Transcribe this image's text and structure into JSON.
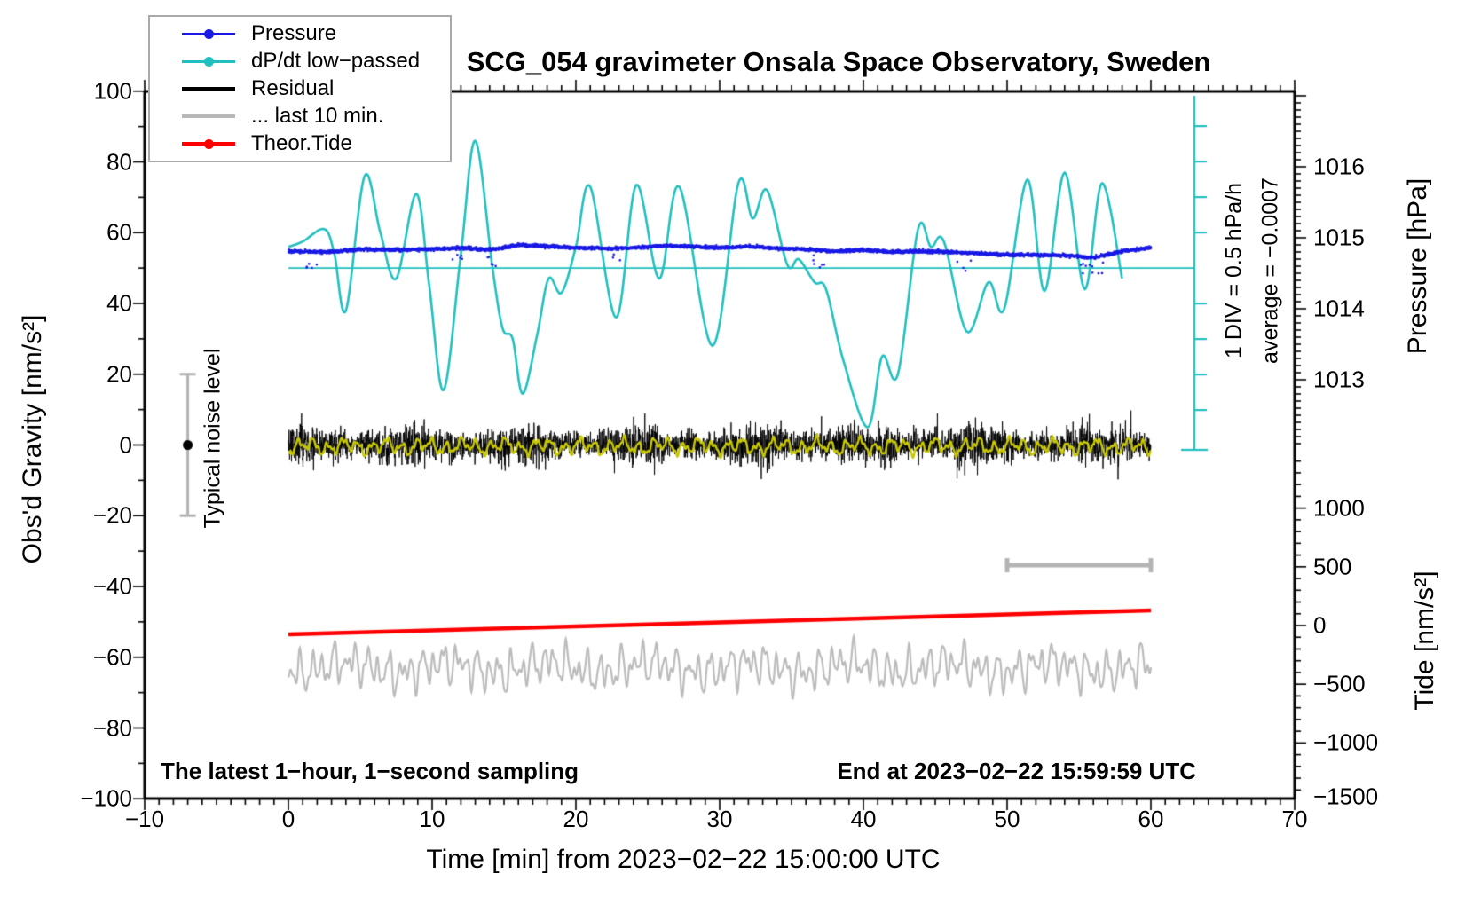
{
  "title": "SCG_054 gravimeter Onsala Space Observatory, Sweden",
  "legend": {
    "items": [
      {
        "label": "Pressure",
        "color": "#1a1ae6",
        "marker": "dot"
      },
      {
        "label": "dP/dt low−passed",
        "color": "#22bfbf",
        "marker": "dot"
      },
      {
        "label": "Residual",
        "color": "#000000",
        "marker": "none"
      },
      {
        "label": "... last 10 min.",
        "color": "#b8b8b8",
        "marker": "none"
      },
      {
        "label": "Theor.Tide",
        "color": "#ff0000",
        "marker": "dot"
      }
    ]
  },
  "annotations": {
    "div_scale": "1 DIV = 0.5 hPa/h",
    "average": "average = −0.0007",
    "noise_label": "Typical noise level",
    "sampling": "The latest 1−hour, 1−second sampling",
    "end_time": "End at 2023−02−22 15:59:59 UTC"
  },
  "axes": {
    "x": {
      "label": "Time [min] from 2023−02−22 15:00:00 UTC",
      "range": [
        -10,
        70
      ],
      "major_tick": 10,
      "minor_tick": 1,
      "ticks": [
        {
          "v": -10,
          "label": "−10"
        },
        {
          "v": 0,
          "label": "0"
        },
        {
          "v": 10,
          "label": "10"
        },
        {
          "v": 20,
          "label": "20"
        },
        {
          "v": 30,
          "label": "30"
        },
        {
          "v": 40,
          "label": "40"
        },
        {
          "v": 50,
          "label": "50"
        },
        {
          "v": 60,
          "label": "60"
        },
        {
          "v": 70,
          "label": "70"
        }
      ]
    },
    "gravity": {
      "label": "Obs'd Gravity [nm/s²]",
      "range": [
        -100,
        100
      ],
      "major_tick": 20,
      "minor_tick": 10,
      "ticks": [
        {
          "v": 100,
          "label": "100"
        },
        {
          "v": 80,
          "label": "80"
        },
        {
          "v": 60,
          "label": "60"
        },
        {
          "v": 40,
          "label": "40"
        },
        {
          "v": 20,
          "label": "20"
        },
        {
          "v": 0,
          "label": "0"
        },
        {
          "v": -20,
          "label": "−20"
        },
        {
          "v": -40,
          "label": "−40"
        },
        {
          "v": -60,
          "label": "−60"
        },
        {
          "v": -80,
          "label": "−80"
        },
        {
          "v": -100,
          "label": "−100"
        }
      ]
    },
    "pressure": {
      "label": "Pressure [hPa]",
      "major_tick": 1,
      "minor_tick": 0.1,
      "ticks": [
        {
          "v": 1016,
          "label": "1016"
        },
        {
          "v": 1015,
          "label": "1015"
        },
        {
          "v": 1014,
          "label": "1014"
        },
        {
          "v": 1013,
          "label": "1013"
        }
      ]
    },
    "tide": {
      "label": "Tide [nm/s²]",
      "major_tick": 500,
      "minor_tick": 100,
      "ticks": [
        {
          "v": 1000,
          "label": "1000"
        },
        {
          "v": 500,
          "label": "500"
        },
        {
          "v": 0,
          "label": "0"
        },
        {
          "v": -500,
          "label": "−500"
        },
        {
          "v": -1000,
          "label": "−1000"
        },
        {
          "v": -1500,
          "label": "−1500"
        }
      ]
    }
  },
  "chart_data": {
    "type": "line",
    "note": "1-hour, 1-second sampling gravimeter record; x in minutes after 2023-02-22 15:00:00 UTC",
    "series": [
      {
        "name": "Pressure",
        "type": "scatter",
        "axis": "pressure_hPa",
        "color": "#1a1ae6",
        "x": [
          0,
          3,
          5,
          8,
          10,
          12,
          14,
          16,
          18,
          20,
          22,
          24,
          26,
          28,
          30,
          32,
          34,
          36,
          38,
          40,
          42,
          44,
          46,
          48,
          50,
          52,
          54,
          56,
          58,
          60
        ],
        "y": [
          1014.81,
          1014.8,
          1014.84,
          1014.83,
          1014.84,
          1014.86,
          1014.83,
          1014.9,
          1014.88,
          1014.86,
          1014.85,
          1014.86,
          1014.89,
          1014.88,
          1014.86,
          1014.88,
          1014.85,
          1014.84,
          1014.81,
          1014.83,
          1014.8,
          1014.81,
          1014.8,
          1014.78,
          1014.76,
          1014.76,
          1014.75,
          1014.72,
          1014.81,
          1014.86
        ],
        "noise_sigma_hPa": 0.04,
        "outlier_clusters_min": [
          1.5,
          11.8,
          14,
          23,
          37,
          47,
          55.5,
          56.5
        ]
      },
      {
        "name": "dP/dt low−passed",
        "type": "line",
        "axis": "gravity_scale_as_dPdt",
        "color": "#22bfbf",
        "zero_line_gravity": 50,
        "div_equals_hPa_per_h": 0.5,
        "average_hPa_per_h": -0.0007,
        "points": [
          [
            0,
            56
          ],
          [
            1,
            57.5
          ],
          [
            2.5,
            61
          ],
          [
            3.2,
            54
          ],
          [
            4,
            38
          ],
          [
            5.3,
            76
          ],
          [
            6.4,
            60
          ],
          [
            7.5,
            47
          ],
          [
            8.9,
            71
          ],
          [
            9.8,
            45
          ],
          [
            10.8,
            15.5
          ],
          [
            12,
            54
          ],
          [
            13,
            86
          ],
          [
            14.2,
            50
          ],
          [
            14.9,
            33
          ],
          [
            15.6,
            30
          ],
          [
            16.3,
            14.5
          ],
          [
            17.3,
            31
          ],
          [
            18.1,
            47
          ],
          [
            19,
            43
          ],
          [
            20,
            56
          ],
          [
            21,
            73
          ],
          [
            22.8,
            36
          ],
          [
            24.2,
            73.5
          ],
          [
            25.8,
            47
          ],
          [
            27.2,
            73
          ],
          [
            29.5,
            28
          ],
          [
            31.3,
            74
          ],
          [
            32.3,
            64
          ],
          [
            33.3,
            72
          ],
          [
            34.7,
            51
          ],
          [
            35.5,
            52.5
          ],
          [
            36.6,
            46
          ],
          [
            37.4,
            44
          ],
          [
            38.6,
            24
          ],
          [
            40.3,
            5
          ],
          [
            41.3,
            25
          ],
          [
            42.4,
            20
          ],
          [
            43.8,
            61
          ],
          [
            44.7,
            56
          ],
          [
            45.6,
            57.5
          ],
          [
            47.2,
            32
          ],
          [
            48.7,
            46
          ],
          [
            49.8,
            38.5
          ],
          [
            51.4,
            75
          ],
          [
            52.6,
            43.5
          ],
          [
            54,
            77
          ],
          [
            55.4,
            44
          ],
          [
            56.6,
            74
          ],
          [
            58,
            47
          ]
        ]
      },
      {
        "name": "Residual",
        "type": "noise-band",
        "axis": "gravity",
        "color": "#000000",
        "x_range": [
          0,
          60
        ],
        "mean": 0,
        "typical_amplitude": 9,
        "spike_amplitude": 16
      },
      {
        "name": "Residual smoothed",
        "type": "line-noise",
        "axis": "gravity",
        "color": "#c8c800",
        "x_range": [
          0,
          60
        ],
        "mean": -0.4,
        "amplitude": 1.8
      },
      {
        "name": "... last 10 min.",
        "type": "line-noise",
        "axis": "gravity",
        "color": "#bcbcbc",
        "x_range": [
          0,
          60
        ],
        "mean": -63,
        "amplitude": 10,
        "note": "last 10 minutes of residual, time-stretched over the hour"
      },
      {
        "name": "Theor.Tide",
        "type": "line",
        "axis": "tide",
        "color": "#ff0000",
        "points": [
          [
            0,
            -75
          ],
          [
            10,
            -41
          ],
          [
            20,
            -7
          ],
          [
            30,
            27
          ],
          [
            40,
            60
          ],
          [
            50,
            94
          ],
          [
            60,
            128
          ]
        ]
      }
    ],
    "markers": {
      "noise_bar": {
        "x_min": -7,
        "gravity_range": [
          -20,
          20
        ],
        "dot_gravity": 0,
        "label": "Typical noise level"
      },
      "ten_min_scale_bar": {
        "x_range": [
          50,
          60
        ],
        "gravity": -34
      }
    }
  },
  "colors": {
    "cyan": "#22bfbf",
    "blue": "#1a1ae6",
    "red": "#ff0000",
    "yellow": "#c8c800",
    "gray": "#bcbcbc",
    "frame": "#000000"
  }
}
